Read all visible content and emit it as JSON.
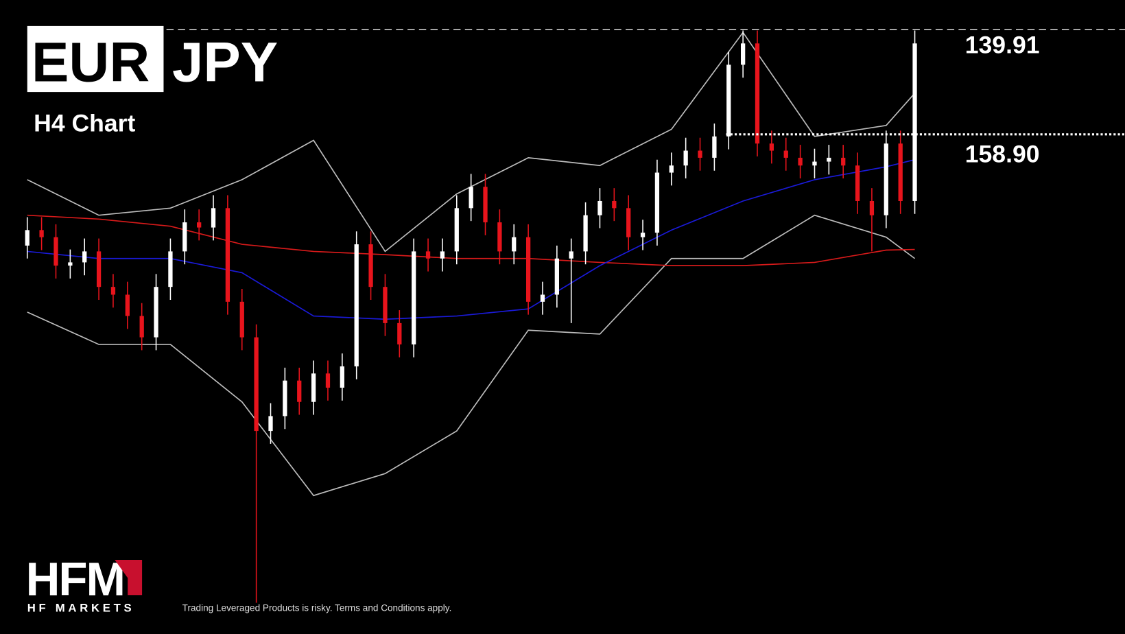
{
  "header": {
    "base": "EUR",
    "quote": "JPY",
    "timeframe": "H4 Chart"
  },
  "chart_data": {
    "type": "candlestick",
    "ylim": [
      0,
      100
    ],
    "up_color": "#ffffff",
    "down_color": "#e8141c",
    "open": [
      62.0,
      64.4,
      63.3,
      58.9,
      59.4,
      61.1,
      55.6,
      54.4,
      51.1,
      47.8,
      55.6,
      61.1,
      65.6,
      64.8,
      67.8,
      53.3,
      47.8,
      33.3,
      35.6,
      41.1,
      37.8,
      42.2,
      40.0,
      43.3,
      62.2,
      55.6,
      50.0,
      46.7,
      61.1,
      60.0,
      61.1,
      67.8,
      71.1,
      65.6,
      61.1,
      63.3,
      53.3,
      54.4,
      60.0,
      61.1,
      66.7,
      68.9,
      67.8,
      63.3,
      64.0,
      73.3,
      74.4,
      76.7,
      75.6,
      78.9,
      90.0,
      93.3,
      77.8,
      76.7,
      75.6,
      74.4,
      75.0,
      75.6,
      74.4,
      68.9,
      66.7,
      77.8,
      68.9
    ],
    "high": [
      66.4,
      66.4,
      65.3,
      61.4,
      63.1,
      63.1,
      57.6,
      56.4,
      53.1,
      57.6,
      63.1,
      67.6,
      67.6,
      69.8,
      69.8,
      55.3,
      49.8,
      37.6,
      43.1,
      43.1,
      44.2,
      44.2,
      45.3,
      64.2,
      64.2,
      57.6,
      52.0,
      63.1,
      63.1,
      63.1,
      69.8,
      73.1,
      73.1,
      67.6,
      65.3,
      65.3,
      56.4,
      62.0,
      63.1,
      68.7,
      70.9,
      70.9,
      69.8,
      66.0,
      75.3,
      76.4,
      78.7,
      78.7,
      80.9,
      92.0,
      95.3,
      95.3,
      79.8,
      78.7,
      77.6,
      77.0,
      77.6,
      77.6,
      76.4,
      70.9,
      79.8,
      79.8,
      95.3
    ],
    "low": [
      60.0,
      61.3,
      56.9,
      56.9,
      57.4,
      53.6,
      52.4,
      49.1,
      45.8,
      45.8,
      53.6,
      59.1,
      62.8,
      62.8,
      51.3,
      45.8,
      6.7,
      31.3,
      33.6,
      35.8,
      35.8,
      38.0,
      38.0,
      41.3,
      53.6,
      48.0,
      44.7,
      44.7,
      58.0,
      58.0,
      59.1,
      65.8,
      63.6,
      59.1,
      59.1,
      51.3,
      51.3,
      52.4,
      50.0,
      59.1,
      64.7,
      65.8,
      61.3,
      61.3,
      62.0,
      71.3,
      72.4,
      73.6,
      73.6,
      76.9,
      88.0,
      75.8,
      74.7,
      73.6,
      72.4,
      72.4,
      73.0,
      72.4,
      66.9,
      61.1,
      64.7,
      66.9,
      66.9
    ],
    "close": [
      64.4,
      63.3,
      58.9,
      59.4,
      61.1,
      55.6,
      54.4,
      51.1,
      47.8,
      55.6,
      61.1,
      65.6,
      64.8,
      67.8,
      53.3,
      47.8,
      33.3,
      35.6,
      41.1,
      37.8,
      42.2,
      40.0,
      43.3,
      62.2,
      55.6,
      50.0,
      46.7,
      61.1,
      60.0,
      61.1,
      67.8,
      71.1,
      65.6,
      61.1,
      63.3,
      53.3,
      54.4,
      60.0,
      61.1,
      66.7,
      68.9,
      67.8,
      63.3,
      64.0,
      73.3,
      74.4,
      76.7,
      75.6,
      78.9,
      90.0,
      93.3,
      77.8,
      76.7,
      75.6,
      74.4,
      75.0,
      75.6,
      74.4,
      68.9,
      66.7,
      77.8,
      68.9,
      93.3
    ],
    "overlays": {
      "x": [
        0,
        5,
        10,
        15,
        20,
        25,
        30,
        35,
        40,
        45,
        50,
        55,
        60,
        62
      ],
      "series": [
        {
          "color": "#bdbdbd",
          "values": [
            72.2,
            66.7,
            67.8,
            72.2,
            78.3,
            61.1,
            70.0,
            75.6,
            74.4,
            80.0,
            95.0,
            78.9,
            80.6,
            85.6
          ]
        },
        {
          "color": "#bdbdbd",
          "values": [
            51.7,
            46.7,
            46.7,
            37.8,
            23.3,
            26.7,
            33.3,
            48.9,
            48.3,
            60.0,
            60.0,
            66.7,
            63.3,
            60.0
          ]
        },
        {
          "color": "#d81a1a",
          "values": [
            66.7,
            66.1,
            65.0,
            62.2,
            61.1,
            60.6,
            60.0,
            60.0,
            59.4,
            58.9,
            58.9,
            59.4,
            61.3,
            61.4
          ]
        },
        {
          "color": "#1a1ad8",
          "values": [
            61.1,
            60.0,
            60.0,
            57.8,
            51.1,
            50.6,
            51.1,
            52.2,
            58.9,
            64.4,
            68.9,
            72.2,
            74.2,
            75.3
          ]
        }
      ]
    },
    "levels": [
      {
        "label": "139.91",
        "style": "dashed"
      },
      {
        "label": "158.90",
        "style": "dotted"
      }
    ]
  },
  "footer": {
    "logo": "HFM",
    "brand": "HF MARKETS",
    "disclaimer": "Trading Leveraged Products is risky. Terms and Conditions apply."
  }
}
